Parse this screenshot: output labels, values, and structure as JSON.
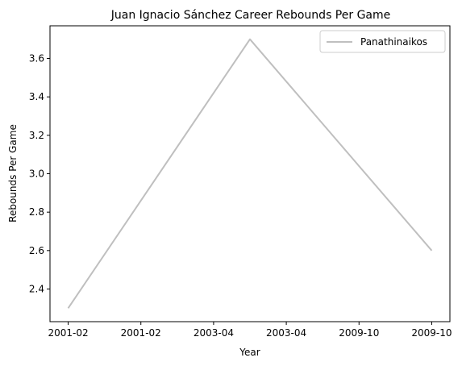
{
  "chart_data": {
    "type": "line",
    "title": "Juan Ignacio Sánchez Career Rebounds Per Game",
    "xlabel": "Year",
    "ylabel": "Rebounds Per Game",
    "x_tick_labels": [
      "2001-02",
      "2001-02",
      "2003-04",
      "2003-04",
      "2009-10",
      "2009-10"
    ],
    "y_ticks": [
      2.4,
      2.6,
      2.8,
      3.0,
      3.2,
      3.4,
      3.6
    ],
    "y_tick_labels": [
      "2.4",
      "2.6",
      "2.8",
      "3.0",
      "3.2",
      "3.4",
      "3.6"
    ],
    "ylim": [
      2.23,
      3.77
    ],
    "xlim": [
      -0.1,
      2.1
    ],
    "x": [
      "2001-02",
      "2003-04",
      "2009-10"
    ],
    "series": [
      {
        "name": "Panathinaikos",
        "values": [
          2.3,
          3.7,
          2.6
        ],
        "color": "#bfbfbf"
      }
    ],
    "legend": "top-right",
    "grid": false
  }
}
